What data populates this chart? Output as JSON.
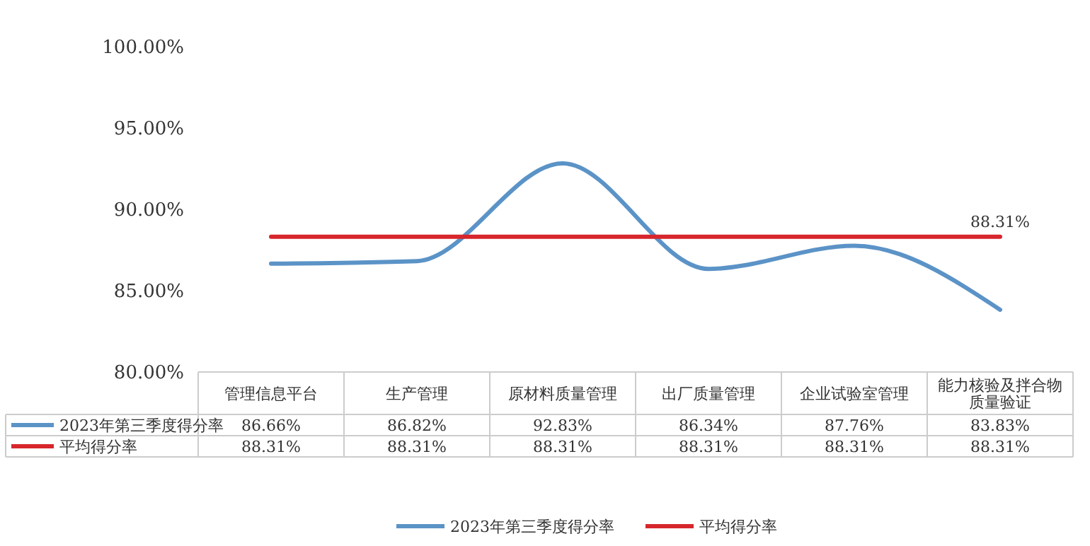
{
  "chart_data": {
    "type": "line",
    "categories": [
      "管理信息平台",
      "生产管理",
      "原材料质量管理",
      "出厂质量管理",
      "企业试验室管理",
      "能力核验及拌合物质量验证"
    ],
    "series": [
      {
        "name": "2023年第三季度得分率",
        "color": "#5b93c7",
        "values": [
          86.66,
          86.82,
          92.83,
          86.34,
          87.76,
          83.83
        ],
        "value_labels": [
          "86.66%",
          "86.82%",
          "92.83%",
          "86.34%",
          "87.76%",
          "83.83%"
        ]
      },
      {
        "name": "平均得分率",
        "color": "#d7262c",
        "values": [
          88.31,
          88.31,
          88.31,
          88.31,
          88.31,
          88.31
        ],
        "value_labels": [
          "88.31%",
          "88.31%",
          "88.31%",
          "88.31%",
          "88.31%",
          "88.31%"
        ]
      }
    ],
    "ylim": [
      80,
      100
    ],
    "yticks": [
      {
        "value": 80,
        "label": "80.00%"
      },
      {
        "value": 85,
        "label": "85.00%"
      },
      {
        "value": 90,
        "label": "90.00%"
      },
      {
        "value": 95,
        "label": "95.00%"
      },
      {
        "value": 100,
        "label": "100.00%"
      }
    ],
    "annotations": [
      {
        "text": "88.31%",
        "x": "能力核验及拌合物质量验证",
        "y": 88.31
      }
    ],
    "legend": "bottom"
  }
}
